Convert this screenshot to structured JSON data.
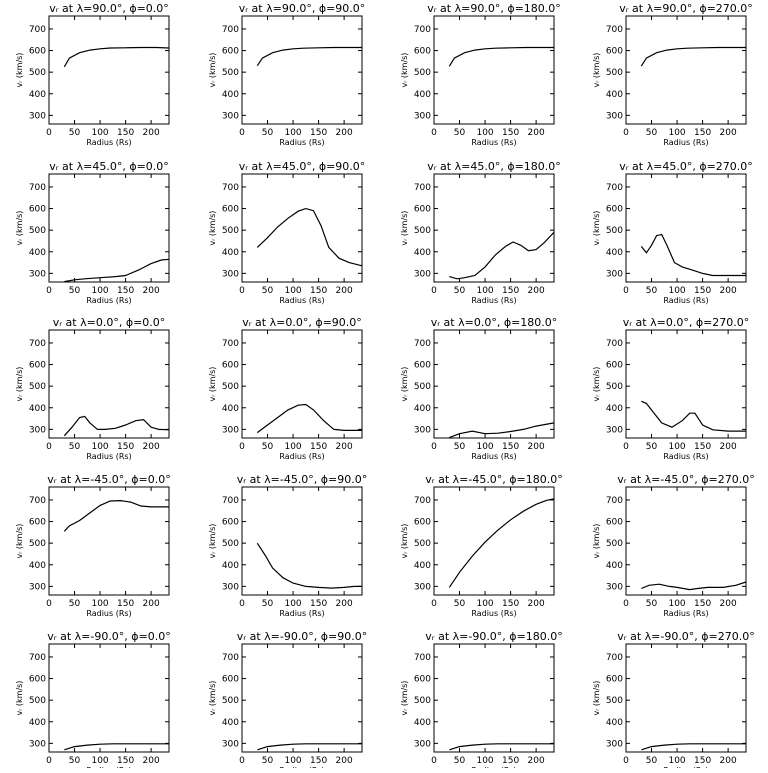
{
  "chart_data": [
    {
      "type": "line",
      "title": "vᵣ at λ=90.0°, ϕ=0.0°",
      "xlabel": "Radius (Rs)",
      "ylabel": "vᵣ (km/s)",
      "xlim": [
        0,
        235
      ],
      "ylim": [
        260,
        760
      ],
      "x": [
        30,
        40,
        60,
        80,
        100,
        120,
        150,
        180,
        210,
        235
      ],
      "y": [
        525,
        565,
        590,
        602,
        608,
        612,
        613,
        614,
        614,
        612
      ]
    },
    {
      "type": "line",
      "title": "vᵣ at λ=90.0°, ϕ=90.0°",
      "xlabel": "Radius (Rs)",
      "ylabel": "vᵣ (km/s)",
      "xlim": [
        0,
        235
      ],
      "ylim": [
        260,
        760
      ],
      "x": [
        30,
        40,
        60,
        80,
        100,
        120,
        150,
        180,
        210,
        235
      ],
      "y": [
        530,
        565,
        590,
        602,
        608,
        611,
        613,
        614,
        614,
        614
      ]
    },
    {
      "type": "line",
      "title": "vᵣ at λ=90.0°, ϕ=180.0°",
      "xlabel": "Radius (Rs)",
      "ylabel": "vᵣ (km/s)",
      "xlim": [
        0,
        235
      ],
      "ylim": [
        260,
        760
      ],
      "x": [
        30,
        40,
        60,
        80,
        100,
        120,
        150,
        180,
        210,
        235
      ],
      "y": [
        527,
        565,
        590,
        602,
        608,
        611,
        613,
        614,
        614,
        614
      ]
    },
    {
      "type": "line",
      "title": "vᵣ at λ=90.0°, ϕ=270.0°",
      "xlabel": "Radius (Rs)",
      "ylabel": "vᵣ (km/s)",
      "xlim": [
        0,
        235
      ],
      "ylim": [
        260,
        760
      ],
      "x": [
        30,
        40,
        60,
        80,
        100,
        120,
        150,
        180,
        210,
        235
      ],
      "y": [
        528,
        565,
        590,
        602,
        608,
        611,
        613,
        614,
        614,
        614
      ]
    },
    {
      "type": "line",
      "title": "vᵣ at λ=45.0°, ϕ=0.0°",
      "xlabel": "Radius (Rs)",
      "ylabel": "vᵣ (km/s)",
      "xlim": [
        0,
        235
      ],
      "ylim": [
        260,
        760
      ],
      "x": [
        30,
        50,
        70,
        100,
        130,
        150,
        175,
        200,
        220,
        235
      ],
      "y": [
        262,
        270,
        275,
        280,
        285,
        290,
        315,
        345,
        362,
        365
      ]
    },
    {
      "type": "line",
      "title": "vᵣ at λ=45.0°, ϕ=90.0°",
      "xlabel": "Radius (Rs)",
      "ylabel": "vᵣ (km/s)",
      "xlim": [
        0,
        235
      ],
      "ylim": [
        260,
        760
      ],
      "x": [
        30,
        50,
        70,
        90,
        110,
        125,
        140,
        155,
        170,
        190,
        210,
        235
      ],
      "y": [
        420,
        465,
        515,
        555,
        588,
        600,
        590,
        520,
        420,
        370,
        350,
        335
      ]
    },
    {
      "type": "line",
      "title": "vᵣ at λ=45.0°, ϕ=180.0°",
      "xlabel": "Radius (Rs)",
      "ylabel": "vᵣ (km/s)",
      "xlim": [
        0,
        235
      ],
      "ylim": [
        260,
        760
      ],
      "x": [
        30,
        45,
        60,
        80,
        100,
        120,
        140,
        155,
        170,
        185,
        200,
        215,
        235
      ],
      "y": [
        285,
        275,
        280,
        290,
        330,
        385,
        425,
        445,
        430,
        405,
        410,
        440,
        490
      ]
    },
    {
      "type": "line",
      "title": "vᵣ at λ=45.0°, ϕ=270.0°",
      "xlabel": "Radius (Rs)",
      "ylabel": "vᵣ (km/s)",
      "xlim": [
        0,
        235
      ],
      "ylim": [
        260,
        760
      ],
      "x": [
        30,
        40,
        50,
        60,
        70,
        80,
        95,
        110,
        130,
        150,
        170,
        200,
        235
      ],
      "y": [
        425,
        395,
        430,
        475,
        480,
        430,
        350,
        330,
        315,
        300,
        290,
        290,
        290
      ]
    },
    {
      "type": "line",
      "title": "vᵣ at λ=0.0°, ϕ=0.0°",
      "xlabel": "Radius (Rs)",
      "ylabel": "vᵣ (km/s)",
      "xlim": [
        0,
        235
      ],
      "ylim": [
        260,
        760
      ],
      "x": [
        30,
        45,
        60,
        70,
        80,
        95,
        110,
        130,
        150,
        170,
        185,
        200,
        215,
        235
      ],
      "y": [
        270,
        310,
        355,
        360,
        330,
        300,
        300,
        305,
        320,
        340,
        345,
        310,
        300,
        298
      ]
    },
    {
      "type": "line",
      "title": "vᵣ at λ=0.0°, ϕ=90.0°",
      "xlabel": "Radius (Rs)",
      "ylabel": "vᵣ (km/s)",
      "xlim": [
        0,
        235
      ],
      "ylim": [
        260,
        760
      ],
      "x": [
        30,
        50,
        70,
        90,
        110,
        125,
        140,
        160,
        180,
        200,
        235
      ],
      "y": [
        285,
        320,
        355,
        390,
        412,
        415,
        390,
        340,
        300,
        295,
        295
      ]
    },
    {
      "type": "line",
      "title": "vᵣ at λ=0.0°, ϕ=180.0°",
      "xlabel": "Radius (Rs)",
      "ylabel": "vᵣ (km/s)",
      "xlim": [
        0,
        235
      ],
      "ylim": [
        260,
        760
      ],
      "x": [
        30,
        50,
        75,
        100,
        125,
        150,
        175,
        200,
        235
      ],
      "y": [
        262,
        280,
        292,
        280,
        282,
        290,
        300,
        315,
        330
      ]
    },
    {
      "type": "line",
      "title": "vᵣ at λ=0.0°, ϕ=270.0°",
      "xlabel": "Radius (Rs)",
      "ylabel": "vᵣ (km/s)",
      "xlim": [
        0,
        235
      ],
      "ylim": [
        260,
        760
      ],
      "x": [
        30,
        40,
        55,
        70,
        90,
        110,
        125,
        135,
        150,
        170,
        200,
        235
      ],
      "y": [
        430,
        420,
        375,
        330,
        310,
        340,
        375,
        375,
        320,
        298,
        292,
        292
      ]
    },
    {
      "type": "line",
      "title": "vᵣ at λ=-45.0°, ϕ=0.0°",
      "xlabel": "Radius (Rs)",
      "ylabel": "vᵣ (km/s)",
      "xlim": [
        0,
        235
      ],
      "ylim": [
        260,
        760
      ],
      "x": [
        30,
        40,
        60,
        80,
        100,
        120,
        140,
        160,
        180,
        200,
        235
      ],
      "y": [
        555,
        580,
        605,
        640,
        675,
        695,
        697,
        690,
        672,
        668,
        668
      ]
    },
    {
      "type": "line",
      "title": "vᵣ at λ=-45.0°, ϕ=90.0°",
      "xlabel": "Radius (Rs)",
      "ylabel": "vᵣ (km/s)",
      "xlim": [
        0,
        235
      ],
      "ylim": [
        260,
        760
      ],
      "x": [
        30,
        45,
        60,
        80,
        100,
        125,
        150,
        175,
        200,
        220,
        235
      ],
      "y": [
        500,
        445,
        385,
        340,
        315,
        300,
        295,
        292,
        295,
        300,
        300
      ]
    },
    {
      "type": "line",
      "title": "vᵣ at λ=-45.0°, ϕ=180.0°",
      "xlabel": "Radius (Rs)",
      "ylabel": "vᵣ (km/s)",
      "xlim": [
        0,
        235
      ],
      "ylim": [
        260,
        760
      ],
      "x": [
        30,
        50,
        75,
        100,
        125,
        150,
        175,
        200,
        220,
        235
      ],
      "y": [
        295,
        365,
        440,
        505,
        560,
        608,
        648,
        680,
        698,
        705
      ]
    },
    {
      "type": "line",
      "title": "vᵣ at λ=-45.0°, ϕ=270.0°",
      "xlabel": "Radius (Rs)",
      "ylabel": "vᵣ (km/s)",
      "xlim": [
        0,
        235
      ],
      "ylim": [
        260,
        760
      ],
      "x": [
        30,
        45,
        65,
        85,
        100,
        125,
        140,
        160,
        190,
        215,
        235
      ],
      "y": [
        290,
        305,
        310,
        300,
        295,
        285,
        290,
        295,
        295,
        305,
        320
      ]
    },
    {
      "type": "line",
      "title": "vᵣ at λ=-90.0°, ϕ=0.0°",
      "xlabel": "Radius (Rs)",
      "ylabel": "vᵣ (km/s)",
      "xlim": [
        0,
        235
      ],
      "ylim": [
        260,
        760
      ],
      "x": [
        30,
        50,
        75,
        100,
        125,
        150,
        200,
        235
      ],
      "y": [
        270,
        285,
        292,
        296,
        298,
        298,
        298,
        298
      ]
    },
    {
      "type": "line",
      "title": "vᵣ at λ=-90.0°, ϕ=90.0°",
      "xlabel": "Radius (Rs)",
      "ylabel": "vᵣ (km/s)",
      "xlim": [
        0,
        235
      ],
      "ylim": [
        260,
        760
      ],
      "x": [
        30,
        50,
        75,
        100,
        125,
        150,
        200,
        235
      ],
      "y": [
        270,
        285,
        292,
        296,
        298,
        298,
        298,
        298
      ]
    },
    {
      "type": "line",
      "title": "vᵣ at λ=-90.0°, ϕ=180.0°",
      "xlabel": "Radius (Rs)",
      "ylabel": "vᵣ (km/s)",
      "xlim": [
        0,
        235
      ],
      "ylim": [
        260,
        760
      ],
      "x": [
        30,
        50,
        75,
        100,
        125,
        150,
        200,
        235
      ],
      "y": [
        270,
        285,
        292,
        296,
        298,
        298,
        298,
        298
      ]
    },
    {
      "type": "line",
      "title": "vᵣ at λ=-90.0°, ϕ=270.0°",
      "xlabel": "Radius (Rs)",
      "ylabel": "vᵣ (km/s)",
      "xlim": [
        0,
        235
      ],
      "ylim": [
        260,
        760
      ],
      "x": [
        30,
        50,
        75,
        100,
        125,
        150,
        200,
        235
      ],
      "y": [
        270,
        285,
        292,
        296,
        298,
        298,
        298,
        298
      ]
    }
  ],
  "axes": {
    "x_ticks": [
      0,
      50,
      100,
      150,
      200
    ],
    "y_ticks": [
      300,
      400,
      500,
      600,
      700
    ]
  }
}
